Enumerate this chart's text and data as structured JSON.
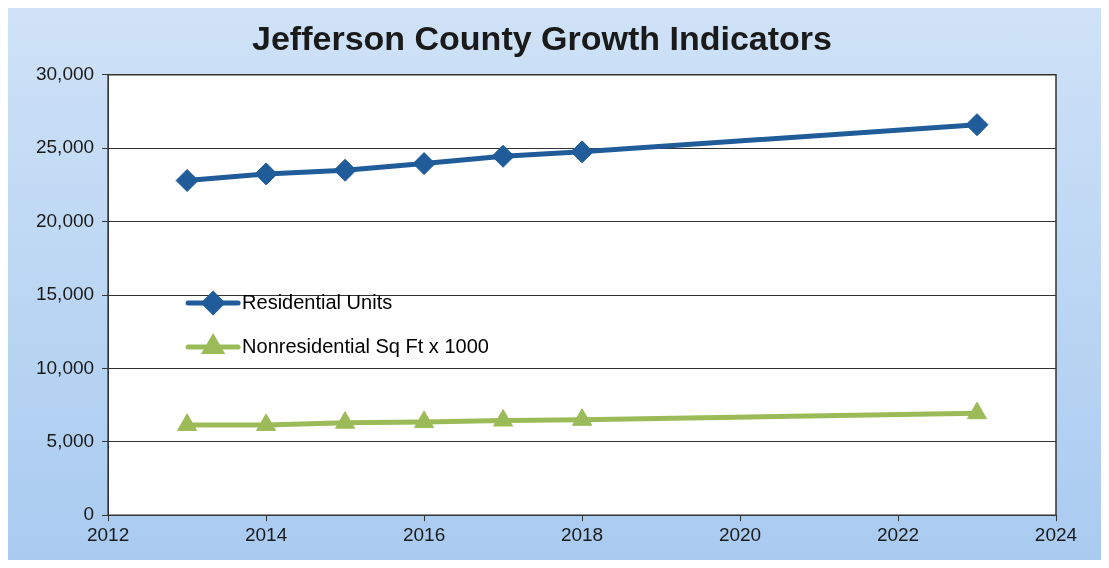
{
  "chart_data": {
    "type": "line",
    "title": "Jefferson County Growth Indicators",
    "x": [
      2013,
      2014,
      2015,
      2016,
      2017,
      2018,
      2023
    ],
    "series": [
      {
        "name": "Residential Units",
        "color": "#1f5c99",
        "marker": "diamond",
        "values": [
          22800,
          23250,
          23500,
          23950,
          24450,
          24750,
          26600
        ]
      },
      {
        "name": "Nonresidential Sq Ft x 1000",
        "color": "#9bbb59",
        "marker": "triangle",
        "values": [
          6150,
          6150,
          6300,
          6350,
          6450,
          6500,
          6950
        ]
      }
    ],
    "xlim": [
      2012,
      2024
    ],
    "xticks": [
      2012,
      2014,
      2016,
      2018,
      2020,
      2022,
      2024
    ],
    "ylim": [
      0,
      30000
    ],
    "yticks": [
      {
        "value": 0,
        "label": "0"
      },
      {
        "value": 5000,
        "label": "5,000"
      },
      {
        "value": 10000,
        "label": "10,000"
      },
      {
        "value": 15000,
        "label": "15,000"
      },
      {
        "value": 20000,
        "label": "20,000"
      },
      {
        "value": 25000,
        "label": "25,000"
      },
      {
        "value": 30000,
        "label": "30,000"
      }
    ],
    "grid": "y",
    "legend": "left",
    "line_style": "solid"
  }
}
